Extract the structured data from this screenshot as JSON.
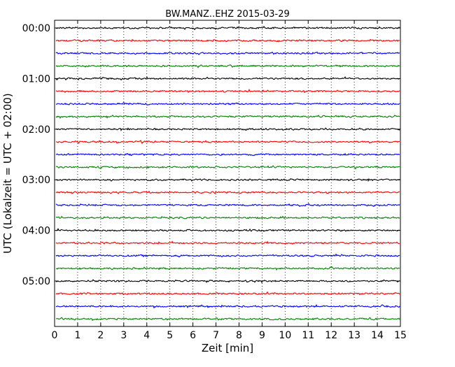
{
  "chart_data": {
    "type": "line",
    "title": "BW.MANZ..EHZ 2015-03-29",
    "xlabel": "Zeit  [min]",
    "ylabel": "UTC (Lokalzeit = UTC + 02:00)",
    "xlim": [
      0,
      15
    ],
    "x_ticks": [
      "0",
      "1",
      "2",
      "3",
      "4",
      "5",
      "6",
      "7",
      "8",
      "9",
      "10",
      "11",
      "12",
      "13",
      "14",
      "15"
    ],
    "y_ticks": [
      "00:00",
      "01:00",
      "02:00",
      "03:00",
      "04:00",
      "05:00"
    ],
    "trace_interval_min": 15,
    "trace_count": 24,
    "trace_colors": [
      "#000000",
      "#ff0000",
      "#0000ff",
      "#008000"
    ],
    "grid": "vertical dotted lines at each minute"
  }
}
